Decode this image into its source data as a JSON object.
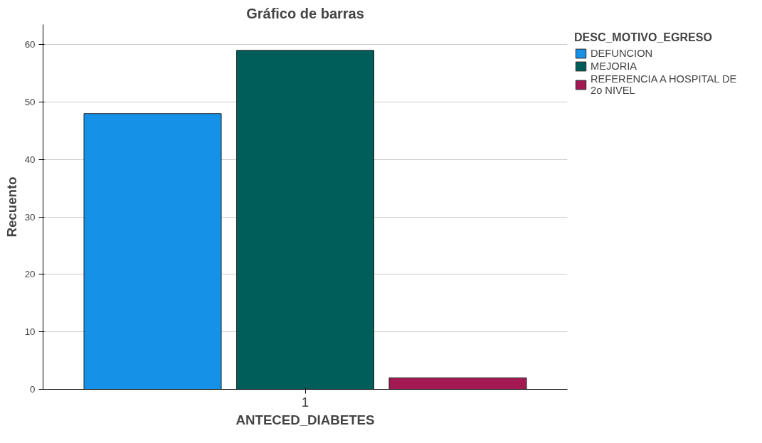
{
  "chart_data": {
    "type": "bar",
    "title": "Gráfico de barras",
    "xlabel": "ANTECED_DIABETES",
    "ylabel": "Recuento",
    "legend_title": "DESC_MOTIVO_EGRESO",
    "categories": [
      "1"
    ],
    "series": [
      {
        "name": "DEFUNCION",
        "color": "#1591e8",
        "values": [
          48
        ]
      },
      {
        "name": "MEJORIA",
        "color": "#005e5a",
        "values": [
          59
        ]
      },
      {
        "name": "REFERENCIA A HOSPITAL DE 2o NIVEL",
        "color": "#a31a52",
        "values": [
          2
        ]
      }
    ],
    "ylim": [
      0,
      63.5
    ],
    "yticks": [
      0,
      10,
      20,
      30,
      40,
      50,
      60
    ],
    "grid": "y",
    "legend": "top right"
  }
}
